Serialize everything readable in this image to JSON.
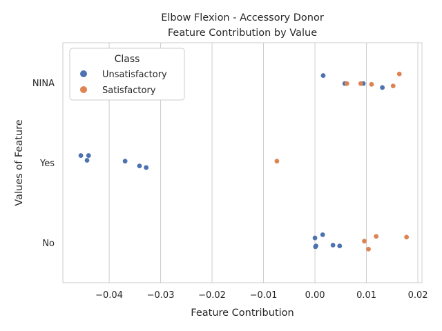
{
  "chart_data": {
    "type": "scatter",
    "title_line1": "Elbow Flexion - Accessory Donor",
    "title_line2": "Feature Contribution by Value",
    "xlabel": "Feature Contribution",
    "ylabel": "Values of Feature",
    "xlim": [
      -0.049,
      0.0208
    ],
    "x_ticks": [
      -0.04,
      -0.03,
      -0.02,
      -0.01,
      0.0,
      0.01,
      0.02
    ],
    "x_tick_labels": [
      "−0.04",
      "−0.03",
      "−0.02",
      "−0.01",
      "0.00",
      "0.01",
      "0.02"
    ],
    "categories": [
      "NINA",
      "Yes",
      "No"
    ],
    "grid": "x-axis vertical lines",
    "legend": {
      "title": "Class",
      "placement": "top-left"
    },
    "series": [
      {
        "name": "Unsatisfactory",
        "color": "#4c72b0",
        "points": [
          {
            "x": 0.0016,
            "y": "NINA",
            "jitter": 0.09
          },
          {
            "x": 0.0058,
            "y": "NINA",
            "jitter": -0.01
          },
          {
            "x": 0.0094,
            "y": "NINA",
            "jitter": -0.01
          },
          {
            "x": 0.0131,
            "y": "NINA",
            "jitter": -0.06
          },
          {
            "x": -0.0455,
            "y": "Yes",
            "jitter": 0.09
          },
          {
            "x": -0.044,
            "y": "Yes",
            "jitter": 0.09
          },
          {
            "x": -0.0443,
            "y": "Yes",
            "jitter": 0.03
          },
          {
            "x": -0.0369,
            "y": "Yes",
            "jitter": 0.02
          },
          {
            "x": -0.0341,
            "y": "Yes",
            "jitter": -0.04
          },
          {
            "x": -0.0328,
            "y": "Yes",
            "jitter": -0.06
          },
          {
            "x": 0.0015,
            "y": "No",
            "jitter": 0.1
          },
          {
            "x": 0.0,
            "y": "No",
            "jitter": 0.06
          },
          {
            "x": 0.0035,
            "y": "No",
            "jitter": -0.03
          },
          {
            "x": 0.0048,
            "y": "No",
            "jitter": -0.04
          },
          {
            "x": 0.0002,
            "y": "No",
            "jitter": -0.04
          },
          {
            "x": 0.0001,
            "y": "No",
            "jitter": -0.05
          }
        ]
      },
      {
        "name": "Satisfactory",
        "color": "#dd8452",
        "points": [
          {
            "x": 0.0164,
            "y": "NINA",
            "jitter": 0.11
          },
          {
            "x": 0.0089,
            "y": "NINA",
            "jitter": -0.01
          },
          {
            "x": 0.0062,
            "y": "NINA",
            "jitter": -0.01
          },
          {
            "x": 0.011,
            "y": "NINA",
            "jitter": -0.02
          },
          {
            "x": 0.0152,
            "y": "NINA",
            "jitter": -0.04
          },
          {
            "x": -0.0074,
            "y": "Yes",
            "jitter": 0.02
          },
          {
            "x": 0.0119,
            "y": "No",
            "jitter": 0.08
          },
          {
            "x": 0.0178,
            "y": "No",
            "jitter": 0.07
          },
          {
            "x": 0.0096,
            "y": "No",
            "jitter": 0.02
          },
          {
            "x": 0.0104,
            "y": "No",
            "jitter": -0.08
          }
        ]
      }
    ]
  }
}
